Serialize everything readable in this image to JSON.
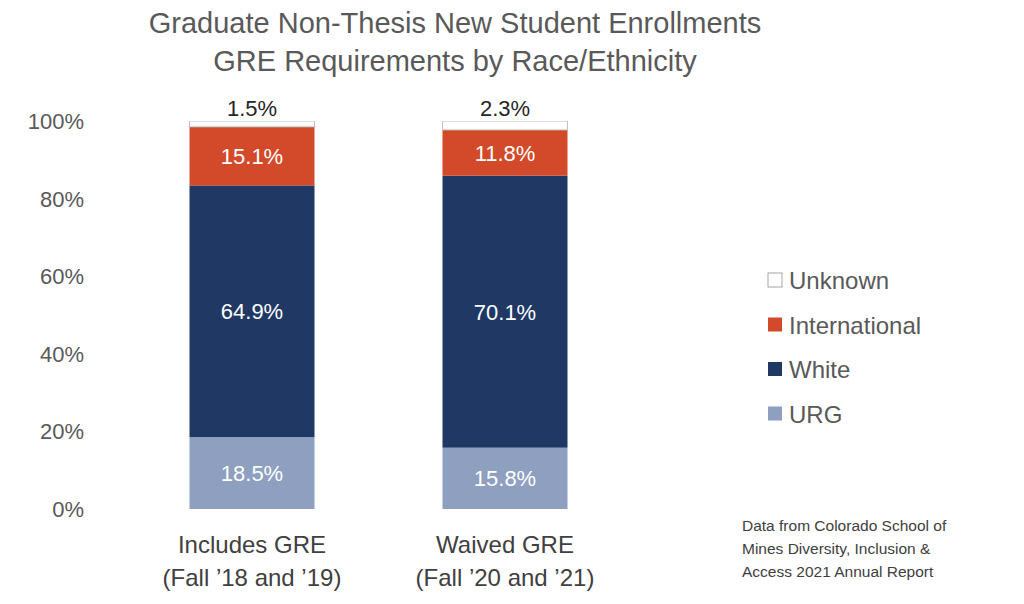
{
  "chart_data": {
    "type": "bar",
    "title": "Graduate Non-Thesis New Student Enrollments\nGRE Requirements by Race/Ethnicity",
    "categories": [
      "Includes GRE\n(Fall ’18 and ’19)",
      "Waived GRE\n(Fall ’20 and ’21)"
    ],
    "series": [
      {
        "name": "URG",
        "color": "#8e9fbf",
        "values": [
          18.5,
          15.8
        ],
        "value_labels": [
          "18.5%",
          "15.8%"
        ]
      },
      {
        "name": "White",
        "color": "#203864",
        "values": [
          64.9,
          70.1
        ],
        "value_labels": [
          "64.9%",
          "70.1%"
        ]
      },
      {
        "name": "International",
        "color": "#d24a29",
        "values": [
          15.1,
          11.8
        ],
        "value_labels": [
          "15.1%",
          "11.8%"
        ]
      },
      {
        "name": "Unknown",
        "color": "#ffffff",
        "values": [
          1.5,
          2.3
        ],
        "value_labels": [
          "1.5%",
          "2.3%"
        ]
      }
    ],
    "ylim": [
      0,
      100
    ],
    "yticks": [
      {
        "value": 0,
        "label": "0%"
      },
      {
        "value": 20,
        "label": "20%"
      },
      {
        "value": 40,
        "label": "40%"
      },
      {
        "value": 60,
        "label": "60%"
      },
      {
        "value": 80,
        "label": "80%"
      },
      {
        "value": 100,
        "label": "100%"
      }
    ],
    "stacked": true,
    "data_labels": true,
    "grid": false,
    "legend": "right",
    "annotations": [
      "Data from Colorado School of\nMines Diversity, Inclusion &\nAccess 2021 Annual Report"
    ]
  }
}
